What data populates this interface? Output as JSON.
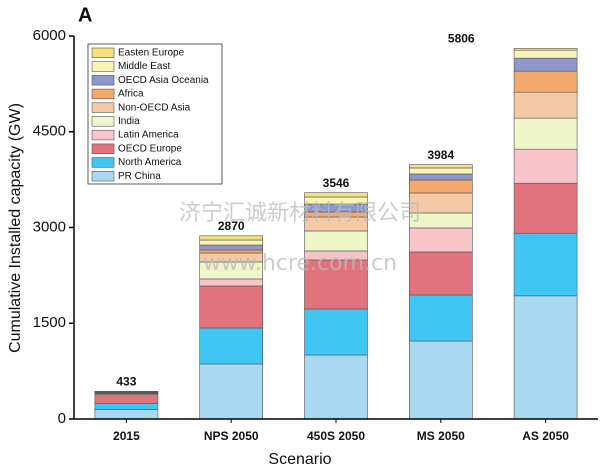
{
  "panel_label": "A",
  "watermark": [
    "济宁汇诚新材料有限公司",
    "www.hcre.com.cn"
  ],
  "chart_data": {
    "type": "stacked_bar",
    "x_label": "Scenario",
    "y_label": "Cumulative Installed capacity (GW)",
    "categories": [
      "2015",
      "NPS 2050",
      "450S 2050",
      "MS 2050",
      "AS 2050"
    ],
    "ylim": [
      0,
      6000
    ],
    "yticks": [
      0,
      1500,
      3000,
      4500,
      6000
    ],
    "totals": [
      433,
      2870,
      3546,
      3984,
      5806
    ],
    "legend": "upper left",
    "series": [
      {
        "name": "PR China",
        "color": "#a8d9f0",
        "values": [
          150,
          862,
          1003,
          1222,
          1930
        ]
      },
      {
        "name": "North America",
        "color": "#3fc6f2",
        "values": [
          90,
          564,
          721,
          721,
          980
        ]
      },
      {
        "name": "OECD Europe",
        "color": "#e2737c",
        "values": [
          140,
          658,
          768,
          674,
          784
        ]
      },
      {
        "name": "Latin America",
        "color": "#f9c3ca",
        "values": [
          15,
          110,
          141,
          376,
          533
        ]
      },
      {
        "name": "India",
        "color": "#eef5c8",
        "values": [
          10,
          266,
          313,
          235,
          486
        ]
      },
      {
        "name": "Non-OECD Asia",
        "color": "#f4caa6",
        "values": [
          8,
          141,
          219,
          313,
          407
        ]
      },
      {
        "name": "Africa",
        "color": "#f5a86c",
        "values": [
          5,
          47,
          78,
          204,
          329
        ]
      },
      {
        "name": "OECD Asia Oceania",
        "color": "#8f96cc",
        "values": [
          10,
          78,
          125,
          94,
          204
        ]
      },
      {
        "name": "Middle East",
        "color": "#fbf3b4",
        "values": [
          3,
          78,
          110,
          94,
          125
        ]
      },
      {
        "name": "Easten Europe",
        "color": "#f7e07a",
        "values": [
          2,
          66,
          68,
          51,
          28
        ]
      }
    ]
  }
}
